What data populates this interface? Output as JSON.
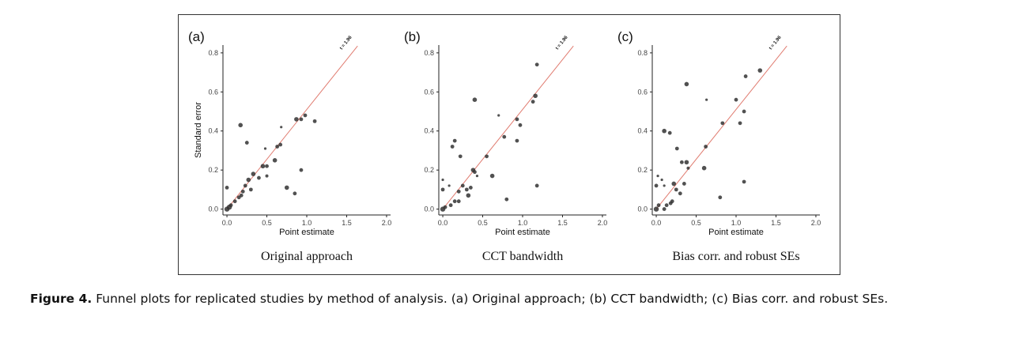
{
  "caption": {
    "label": "Figure 4.",
    "text": "Funnel plots for replicated studies by method of analysis. (a) Original approach; (b) CCT bandwidth; (c) Bias corr. and robust SEs."
  },
  "colors": {
    "reference_line": "#e07b6f",
    "points": "#333333",
    "frame": "#333333"
  },
  "chart_data": [
    {
      "type": "scatter",
      "panel_label": "(a)",
      "subtitle": "Original approach",
      "xlabel": "Point estimate",
      "ylabel": "Standard error",
      "xlim": [
        -0.05,
        2.05
      ],
      "ylim": [
        -0.03,
        0.84
      ],
      "xticks": [
        "0.0",
        "0.5",
        "1.0",
        "1.5",
        "2.0"
      ],
      "yticks": [
        "0.0",
        "0.2",
        "0.4",
        "0.6",
        "0.8"
      ],
      "reference_line": {
        "label": "t = 1.96",
        "t": 1.96
      },
      "points": [
        {
          "x": 0.0,
          "y": 0.0,
          "s": 4
        },
        {
          "x": 0.03,
          "y": 0.01,
          "s": 4
        },
        {
          "x": 0.05,
          "y": 0.02,
          "s": 3
        },
        {
          "x": 0.0,
          "y": 0.11,
          "s": 3
        },
        {
          "x": 0.1,
          "y": 0.04,
          "s": 3
        },
        {
          "x": 0.15,
          "y": 0.06,
          "s": 3
        },
        {
          "x": 0.18,
          "y": 0.07,
          "s": 3
        },
        {
          "x": 0.2,
          "y": 0.09,
          "s": 3
        },
        {
          "x": 0.23,
          "y": 0.12,
          "s": 3
        },
        {
          "x": 0.27,
          "y": 0.15,
          "s": 3.5
        },
        {
          "x": 0.3,
          "y": 0.1,
          "s": 3
        },
        {
          "x": 0.33,
          "y": 0.18,
          "s": 3.5
        },
        {
          "x": 0.4,
          "y": 0.16,
          "s": 3
        },
        {
          "x": 0.45,
          "y": 0.22,
          "s": 3.5
        },
        {
          "x": 0.5,
          "y": 0.22,
          "s": 3
        },
        {
          "x": 0.5,
          "y": 0.17,
          "s": 2.5
        },
        {
          "x": 0.48,
          "y": 0.31,
          "s": 2
        },
        {
          "x": 0.25,
          "y": 0.34,
          "s": 3
        },
        {
          "x": 0.17,
          "y": 0.43,
          "s": 3.5
        },
        {
          "x": 0.6,
          "y": 0.25,
          "s": 3.5
        },
        {
          "x": 0.63,
          "y": 0.32,
          "s": 3
        },
        {
          "x": 0.67,
          "y": 0.33,
          "s": 3
        },
        {
          "x": 0.68,
          "y": 0.42,
          "s": 2
        },
        {
          "x": 0.75,
          "y": 0.11,
          "s": 3.5
        },
        {
          "x": 0.85,
          "y": 0.08,
          "s": 3
        },
        {
          "x": 0.87,
          "y": 0.46,
          "s": 3.5
        },
        {
          "x": 0.93,
          "y": 0.46,
          "s": 3
        },
        {
          "x": 0.98,
          "y": 0.48,
          "s": 3
        },
        {
          "x": 1.1,
          "y": 0.45,
          "s": 3
        },
        {
          "x": 0.93,
          "y": 0.2,
          "s": 3
        }
      ]
    },
    {
      "type": "scatter",
      "panel_label": "(b)",
      "subtitle": "CCT bandwidth",
      "xlabel": "Point estimate",
      "ylabel": "",
      "xlim": [
        -0.05,
        2.05
      ],
      "ylim": [
        -0.03,
        0.84
      ],
      "xticks": [
        "0.0",
        "0.5",
        "1.0",
        "1.5",
        "2.0"
      ],
      "yticks": [
        "0.0",
        "0.2",
        "0.4",
        "0.6",
        "0.8"
      ],
      "reference_line": {
        "label": "t = 1.96",
        "t": 1.96
      },
      "points": [
        {
          "x": 0.0,
          "y": 0.0,
          "s": 4
        },
        {
          "x": 0.03,
          "y": 0.01,
          "s": 3
        },
        {
          "x": 0.0,
          "y": 0.1,
          "s": 3
        },
        {
          "x": 0.0,
          "y": 0.15,
          "s": 2
        },
        {
          "x": 0.08,
          "y": 0.12,
          "s": 2
        },
        {
          "x": 0.1,
          "y": 0.02,
          "s": 3
        },
        {
          "x": 0.15,
          "y": 0.04,
          "s": 3
        },
        {
          "x": 0.2,
          "y": 0.04,
          "s": 3
        },
        {
          "x": 0.2,
          "y": 0.09,
          "s": 3
        },
        {
          "x": 0.25,
          "y": 0.12,
          "s": 3
        },
        {
          "x": 0.3,
          "y": 0.1,
          "s": 3
        },
        {
          "x": 0.32,
          "y": 0.07,
          "s": 3.5
        },
        {
          "x": 0.35,
          "y": 0.11,
          "s": 3
        },
        {
          "x": 0.38,
          "y": 0.2,
          "s": 3.5
        },
        {
          "x": 0.4,
          "y": 0.19,
          "s": 3
        },
        {
          "x": 0.12,
          "y": 0.32,
          "s": 3
        },
        {
          "x": 0.15,
          "y": 0.35,
          "s": 3
        },
        {
          "x": 0.22,
          "y": 0.27,
          "s": 3
        },
        {
          "x": 0.43,
          "y": 0.17,
          "s": 2
        },
        {
          "x": 0.4,
          "y": 0.56,
          "s": 3.5
        },
        {
          "x": 0.55,
          "y": 0.27,
          "s": 3
        },
        {
          "x": 0.62,
          "y": 0.17,
          "s": 3.5
        },
        {
          "x": 0.7,
          "y": 0.48,
          "s": 2
        },
        {
          "x": 0.77,
          "y": 0.37,
          "s": 3
        },
        {
          "x": 0.8,
          "y": 0.05,
          "s": 3
        },
        {
          "x": 0.93,
          "y": 0.46,
          "s": 3
        },
        {
          "x": 0.97,
          "y": 0.43,
          "s": 3
        },
        {
          "x": 0.93,
          "y": 0.35,
          "s": 3
        },
        {
          "x": 1.13,
          "y": 0.55,
          "s": 3
        },
        {
          "x": 1.16,
          "y": 0.58,
          "s": 3.5
        },
        {
          "x": 1.18,
          "y": 0.74,
          "s": 3
        },
        {
          "x": 1.18,
          "y": 0.12,
          "s": 3
        }
      ]
    },
    {
      "type": "scatter",
      "panel_label": "(c)",
      "subtitle": "Bias corr. and robust SEs",
      "xlabel": "Point estimate",
      "ylabel": "",
      "xlim": [
        -0.05,
        2.05
      ],
      "ylim": [
        -0.03,
        0.84
      ],
      "xticks": [
        "0.0",
        "0.5",
        "1.0",
        "1.5",
        "2.0"
      ],
      "yticks": [
        "0.0",
        "0.2",
        "0.4",
        "0.6",
        "0.8"
      ],
      "reference_line": {
        "label": "t = 1.96",
        "t": 1.96
      },
      "points": [
        {
          "x": 0.0,
          "y": 0.0,
          "s": 4
        },
        {
          "x": 0.03,
          "y": 0.02,
          "s": 3
        },
        {
          "x": 0.0,
          "y": 0.12,
          "s": 3
        },
        {
          "x": 0.02,
          "y": 0.17,
          "s": 2
        },
        {
          "x": 0.07,
          "y": 0.15,
          "s": 2
        },
        {
          "x": 0.1,
          "y": 0.12,
          "s": 2
        },
        {
          "x": 0.1,
          "y": 0.0,
          "s": 3
        },
        {
          "x": 0.13,
          "y": 0.02,
          "s": 3
        },
        {
          "x": 0.18,
          "y": 0.03,
          "s": 3
        },
        {
          "x": 0.2,
          "y": 0.04,
          "s": 3
        },
        {
          "x": 0.22,
          "y": 0.13,
          "s": 3.5
        },
        {
          "x": 0.25,
          "y": 0.1,
          "s": 3
        },
        {
          "x": 0.3,
          "y": 0.08,
          "s": 3
        },
        {
          "x": 0.35,
          "y": 0.13,
          "s": 3
        },
        {
          "x": 0.38,
          "y": 0.24,
          "s": 3.5
        },
        {
          "x": 0.4,
          "y": 0.21,
          "s": 2.5
        },
        {
          "x": 0.1,
          "y": 0.4,
          "s": 3.5
        },
        {
          "x": 0.17,
          "y": 0.39,
          "s": 3
        },
        {
          "x": 0.26,
          "y": 0.31,
          "s": 3
        },
        {
          "x": 0.32,
          "y": 0.24,
          "s": 3
        },
        {
          "x": 0.38,
          "y": 0.64,
          "s": 3.5
        },
        {
          "x": 0.6,
          "y": 0.21,
          "s": 3.5
        },
        {
          "x": 0.62,
          "y": 0.32,
          "s": 3
        },
        {
          "x": 0.63,
          "y": 0.56,
          "s": 2
        },
        {
          "x": 0.8,
          "y": 0.06,
          "s": 3
        },
        {
          "x": 0.83,
          "y": 0.44,
          "s": 3
        },
        {
          "x": 1.0,
          "y": 0.56,
          "s": 3
        },
        {
          "x": 1.05,
          "y": 0.44,
          "s": 3
        },
        {
          "x": 1.1,
          "y": 0.5,
          "s": 3
        },
        {
          "x": 1.12,
          "y": 0.68,
          "s": 3
        },
        {
          "x": 1.1,
          "y": 0.14,
          "s": 3
        },
        {
          "x": 1.3,
          "y": 0.71,
          "s": 3.5
        }
      ]
    }
  ]
}
